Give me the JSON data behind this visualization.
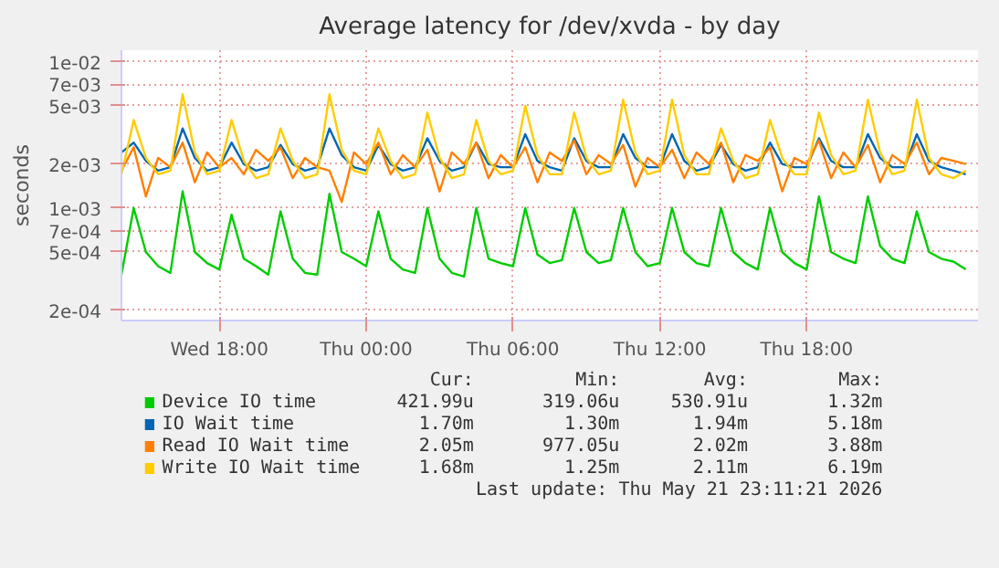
{
  "chart_data": {
    "type": "line",
    "title": "Average latency for /dev/xvda - by day",
    "ylabel": "seconds",
    "log": "y",
    "grid": true,
    "legend": "bottom",
    "xlim": [
      "2026-05-20T14:00",
      "2026-05-22T01:00"
    ],
    "xticks": [
      {
        "value": "2026-05-20T18:00",
        "label": "Wed 18:00"
      },
      {
        "value": "2026-05-21T00:00",
        "label": "Thu 00:00"
      },
      {
        "value": "2026-05-21T06:00",
        "label": "Thu 06:00"
      },
      {
        "value": "2026-05-21T12:00",
        "label": "Thu 12:00"
      },
      {
        "value": "2026-05-21T18:00",
        "label": "Thu 18:00"
      }
    ],
    "ylim": [
      0.00017,
      0.012
    ],
    "yticks": [
      {
        "value": 0.0002,
        "label": "2e-04"
      },
      {
        "value": 0.0005,
        "label": "5e-04"
      },
      {
        "value": 0.0007,
        "label": "7e-04"
      },
      {
        "value": 0.001,
        "label": "1e-03"
      },
      {
        "value": 0.002,
        "label": "2e-03"
      },
      {
        "value": 0.005,
        "label": "5e-03"
      },
      {
        "value": 0.007,
        "label": "7e-03"
      },
      {
        "value": 0.01,
        "label": "1e-02"
      }
    ],
    "x": [
      "2026-05-20T14:00",
      "2026-05-20T14:30",
      "2026-05-20T15:00",
      "2026-05-20T15:30",
      "2026-05-20T16:00",
      "2026-05-20T16:30",
      "2026-05-20T17:00",
      "2026-05-20T17:30",
      "2026-05-20T18:00",
      "2026-05-20T18:30",
      "2026-05-20T19:00",
      "2026-05-20T19:30",
      "2026-05-20T20:00",
      "2026-05-20T20:30",
      "2026-05-20T21:00",
      "2026-05-20T21:30",
      "2026-05-20T22:00",
      "2026-05-20T22:30",
      "2026-05-20T23:00",
      "2026-05-20T23:30",
      "2026-05-21T00:00",
      "2026-05-21T00:30",
      "2026-05-21T01:00",
      "2026-05-21T01:30",
      "2026-05-21T02:00",
      "2026-05-21T02:30",
      "2026-05-21T03:00",
      "2026-05-21T03:30",
      "2026-05-21T04:00",
      "2026-05-21T04:30",
      "2026-05-21T05:00",
      "2026-05-21T05:30",
      "2026-05-21T06:00",
      "2026-05-21T06:30",
      "2026-05-21T07:00",
      "2026-05-21T07:30",
      "2026-05-21T08:00",
      "2026-05-21T08:30",
      "2026-05-21T09:00",
      "2026-05-21T09:30",
      "2026-05-21T10:00",
      "2026-05-21T10:30",
      "2026-05-21T11:00",
      "2026-05-21T11:30",
      "2026-05-21T12:00",
      "2026-05-21T12:30",
      "2026-05-21T13:00",
      "2026-05-21T13:30",
      "2026-05-21T14:00",
      "2026-05-21T14:30",
      "2026-05-21T15:00",
      "2026-05-21T15:30",
      "2026-05-21T16:00",
      "2026-05-21T16:30",
      "2026-05-21T17:00",
      "2026-05-21T17:30",
      "2026-05-21T18:00",
      "2026-05-21T18:30",
      "2026-05-21T19:00",
      "2026-05-21T19:30",
      "2026-05-21T20:00",
      "2026-05-21T20:30",
      "2026-05-21T21:00",
      "2026-05-21T21:30",
      "2026-05-21T22:00",
      "2026-05-21T22:30",
      "2026-05-21T23:00",
      "2026-05-21T23:30",
      "2026-05-22T00:00",
      "2026-05-22T00:30"
    ],
    "series": [
      {
        "name": "Device IO time",
        "color": "#00cc00",
        "values": [
          0.00035,
          0.001,
          0.0005,
          0.0004,
          0.00036,
          0.0013,
          0.0005,
          0.00042,
          0.00038,
          0.0009,
          0.00045,
          0.0004,
          0.00035,
          0.00095,
          0.00045,
          0.00036,
          0.00035,
          0.00125,
          0.0005,
          0.00045,
          0.0004,
          0.00095,
          0.00045,
          0.00038,
          0.00036,
          0.001,
          0.00045,
          0.00036,
          0.00034,
          0.001,
          0.00045,
          0.00042,
          0.0004,
          0.001,
          0.00048,
          0.00042,
          0.00044,
          0.001,
          0.0005,
          0.00042,
          0.00044,
          0.001,
          0.0005,
          0.0004,
          0.00042,
          0.001,
          0.0005,
          0.00042,
          0.0004,
          0.001,
          0.0005,
          0.00042,
          0.00038,
          0.001,
          0.0005,
          0.00042,
          0.00038,
          0.0012,
          0.0005,
          0.00045,
          0.00042,
          0.0012,
          0.00055,
          0.00045,
          0.00042,
          0.00095,
          0.0005,
          0.00045,
          0.00043,
          0.00038
        ]
      },
      {
        "name": "IO Wait time",
        "color": "#0066b3",
        "values": [
          0.0024,
          0.0028,
          0.0021,
          0.0018,
          0.0019,
          0.0035,
          0.0022,
          0.0018,
          0.0019,
          0.0028,
          0.002,
          0.0018,
          0.0019,
          0.0027,
          0.002,
          0.0018,
          0.0019,
          0.0035,
          0.0023,
          0.0019,
          0.0018,
          0.0027,
          0.002,
          0.0018,
          0.0019,
          0.003,
          0.0021,
          0.0018,
          0.0019,
          0.0028,
          0.002,
          0.0019,
          0.0019,
          0.0032,
          0.0021,
          0.0019,
          0.0018,
          0.003,
          0.0021,
          0.0019,
          0.0019,
          0.0032,
          0.0022,
          0.0019,
          0.0019,
          0.0032,
          0.0021,
          0.0018,
          0.0019,
          0.0027,
          0.002,
          0.0018,
          0.0019,
          0.0028,
          0.002,
          0.0019,
          0.0019,
          0.003,
          0.0021,
          0.0019,
          0.0019,
          0.0032,
          0.0022,
          0.0019,
          0.0019,
          0.0032,
          0.0021,
          0.0019,
          0.0018,
          0.0017
        ]
      },
      {
        "name": "Read IO Wait time",
        "color": "#ff8000",
        "values": [
          0.0018,
          0.0026,
          0.0012,
          0.0022,
          0.0019,
          0.0028,
          0.0015,
          0.0024,
          0.0019,
          0.0022,
          0.0017,
          0.0025,
          0.0021,
          0.0026,
          0.0016,
          0.0022,
          0.0019,
          0.0018,
          0.0011,
          0.0024,
          0.002,
          0.0028,
          0.0017,
          0.0023,
          0.0019,
          0.0025,
          0.0013,
          0.0024,
          0.002,
          0.0028,
          0.0016,
          0.0023,
          0.0019,
          0.0026,
          0.0015,
          0.0024,
          0.0021,
          0.0029,
          0.0017,
          0.0023,
          0.002,
          0.0027,
          0.0014,
          0.0022,
          0.0019,
          0.0025,
          0.0016,
          0.0024,
          0.002,
          0.0028,
          0.0015,
          0.0023,
          0.0021,
          0.0026,
          0.0013,
          0.0022,
          0.002,
          0.0029,
          0.0016,
          0.0024,
          0.0019,
          0.0027,
          0.0015,
          0.0023,
          0.002,
          0.0028,
          0.0017,
          0.0022,
          0.0021,
          0.002
        ]
      },
      {
        "name": "Write IO Wait time",
        "color": "#ffcc00",
        "values": [
          0.0017,
          0.004,
          0.0022,
          0.0017,
          0.0018,
          0.006,
          0.0024,
          0.0017,
          0.0018,
          0.004,
          0.0021,
          0.0016,
          0.0017,
          0.0035,
          0.0021,
          0.0016,
          0.0017,
          0.006,
          0.0025,
          0.0018,
          0.0017,
          0.0035,
          0.0021,
          0.0016,
          0.0017,
          0.0045,
          0.0022,
          0.0016,
          0.0017,
          0.004,
          0.0021,
          0.0017,
          0.0018,
          0.005,
          0.0023,
          0.0017,
          0.0017,
          0.0045,
          0.0022,
          0.0017,
          0.0018,
          0.0055,
          0.0024,
          0.0017,
          0.0018,
          0.0055,
          0.0023,
          0.0017,
          0.0017,
          0.0035,
          0.0021,
          0.0016,
          0.0017,
          0.004,
          0.0022,
          0.0017,
          0.0017,
          0.0045,
          0.0023,
          0.0017,
          0.0018,
          0.0055,
          0.0024,
          0.0017,
          0.0018,
          0.0055,
          0.0022,
          0.0017,
          0.0016,
          0.0018
        ]
      }
    ],
    "annotations": [
      "Cur:",
      "Min:",
      "Avg:",
      "Max:",
      "421.99u",
      "319.06u",
      "530.91u",
      "1.32m",
      "1.70m",
      "1.30m",
      "1.94m",
      "5.18m",
      "2.05m",
      "977.05u",
      "2.02m",
      "3.88m",
      "1.68m",
      "1.25m",
      "2.11m",
      "6.19m",
      "Last update: Thu May 21 23:11:21 2026"
    ]
  }
}
